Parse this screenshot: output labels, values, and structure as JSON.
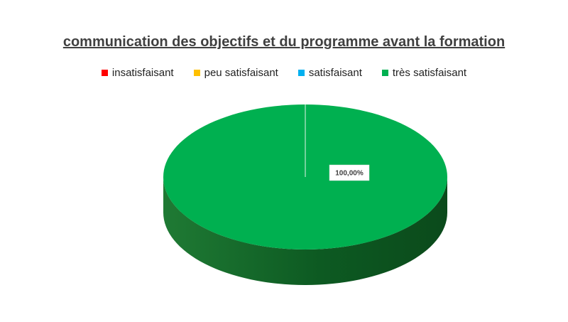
{
  "chart_data": {
    "type": "pie",
    "title": "communication des objectifs et du programme avant la formation",
    "categories": [
      "insatisfaisant",
      "peu satisfaisant",
      "satisfaisant",
      "très satisfaisant"
    ],
    "values": [
      0,
      0,
      0,
      100
    ],
    "data_labels": [
      "",
      "",
      "",
      "100,00%"
    ],
    "colors": [
      "#ff0000",
      "#ffc000",
      "#00b0f0",
      "#00b050"
    ],
    "legend_position": "top",
    "style": "3d"
  }
}
